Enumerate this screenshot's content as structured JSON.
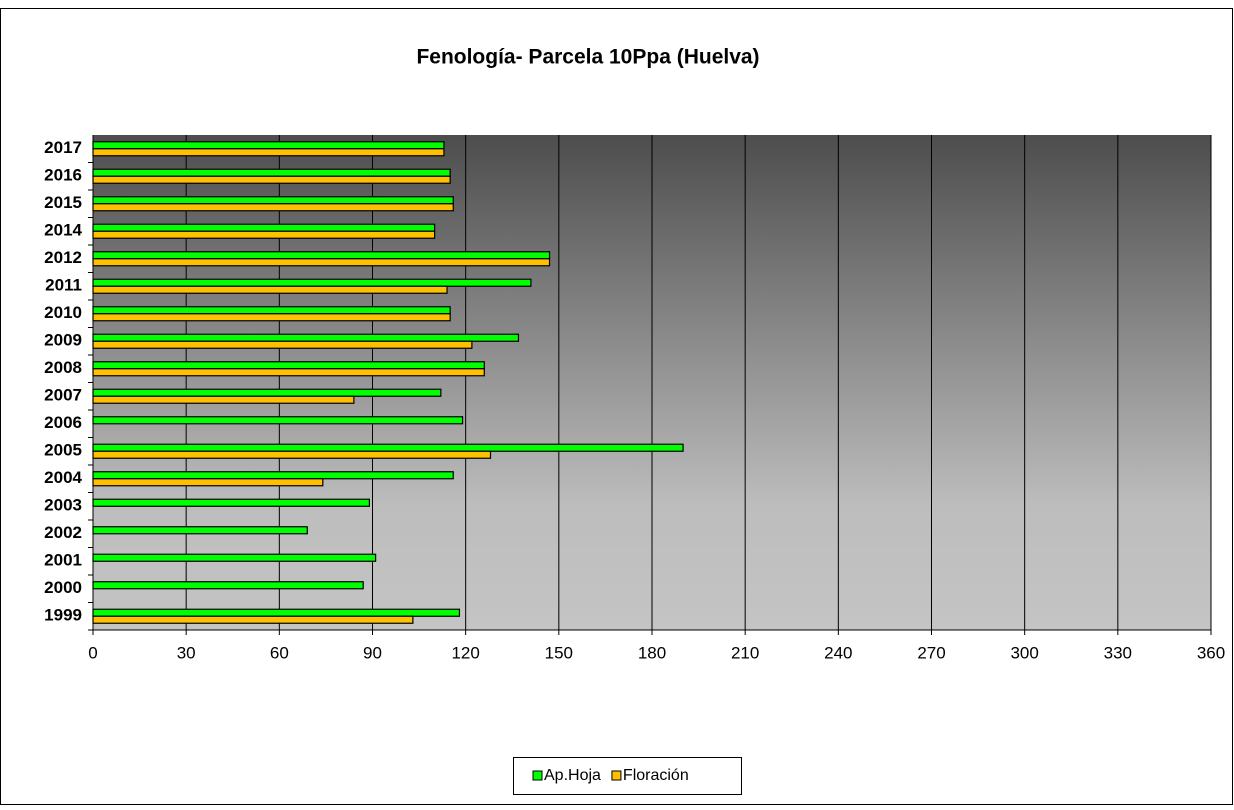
{
  "chart_data": {
    "type": "bar",
    "orientation": "horizontal",
    "title": "Fenología- Parcela 10Ppa (Huelva)",
    "categories": [
      "1999",
      "2000",
      "2001",
      "2002",
      "2003",
      "2004",
      "2005",
      "2006",
      "2007",
      "2008",
      "2009",
      "2010",
      "2011",
      "2012",
      "2014",
      "2015",
      "2016",
      "2017"
    ],
    "series": [
      {
        "name": "Ap.Hoja",
        "color": "#00ff00",
        "values": [
          118,
          87,
          91,
          69,
          89,
          116,
          190,
          119,
          112,
          126,
          137,
          115,
          141,
          147,
          110,
          116,
          115,
          113
        ]
      },
      {
        "name": "Floración",
        "color": "#ffc000",
        "values": [
          103,
          null,
          null,
          null,
          null,
          74,
          128,
          null,
          84,
          126,
          122,
          115,
          114,
          147,
          110,
          116,
          115,
          113
        ]
      }
    ],
    "xlim": [
      0,
      360
    ],
    "xticks": [
      0,
      30,
      60,
      90,
      120,
      150,
      180,
      210,
      240,
      270,
      300,
      330,
      360
    ],
    "grid": true,
    "legend": "bottom"
  }
}
